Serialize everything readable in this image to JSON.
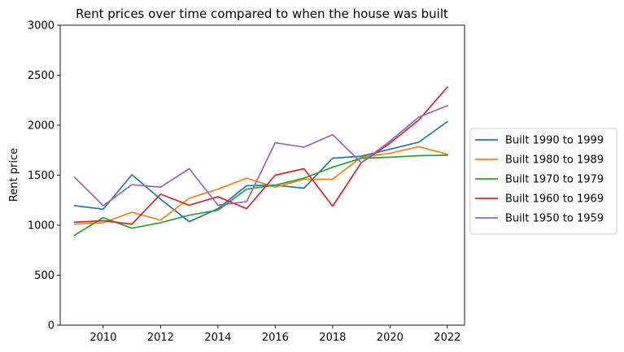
{
  "chart_data": {
    "type": "line",
    "title": "Rent prices over time compared to when the house was built",
    "xlabel": "",
    "ylabel": "Rent price",
    "xlim": [
      2008.5,
      2022.6
    ],
    "ylim": [
      0,
      3000
    ],
    "xticks": [
      2010,
      2012,
      2014,
      2016,
      2018,
      2020,
      2022
    ],
    "yticks": [
      0,
      500,
      1000,
      1500,
      2000,
      2500,
      3000
    ],
    "grid": false,
    "legend_position": "right",
    "x": [
      2009,
      2010,
      2011,
      2012,
      2013,
      2014,
      2015,
      2016,
      2017,
      2018,
      2019,
      2020,
      2021,
      2022
    ],
    "series": [
      {
        "name": "Built 1990 to 1999",
        "color": "#1f77b4",
        "values": [
          1195,
          1160,
          1505,
          1260,
          1035,
          1165,
          1395,
          1400,
          1370,
          1670,
          1690,
          1760,
          1830,
          2035
        ]
      },
      {
        "name": "Built 1980 to 1989",
        "color": "#ff7f0e",
        "values": [
          1010,
          1025,
          1130,
          1050,
          1270,
          1360,
          1470,
          1380,
          1460,
          1460,
          1680,
          1720,
          1785,
          1710
        ]
      },
      {
        "name": "Built 1970 to 1979",
        "color": "#2ca02c",
        "values": [
          900,
          1075,
          970,
          1025,
          1100,
          1150,
          1360,
          1400,
          1470,
          1580,
          1670,
          1680,
          1695,
          1700
        ]
      },
      {
        "name": "Built 1960 to 1969",
        "color": "#d62728",
        "values": [
          1030,
          1045,
          1010,
          1310,
          1200,
          1285,
          1165,
          1500,
          1565,
          1190,
          1625,
          1820,
          2050,
          2380
        ]
      },
      {
        "name": "Built 1950 to 1959",
        "color": "#9467bd",
        "values": [
          1480,
          1195,
          1405,
          1380,
          1565,
          1200,
          1235,
          1825,
          1780,
          1905,
          1625,
          1840,
          2080,
          2195
        ]
      }
    ]
  }
}
